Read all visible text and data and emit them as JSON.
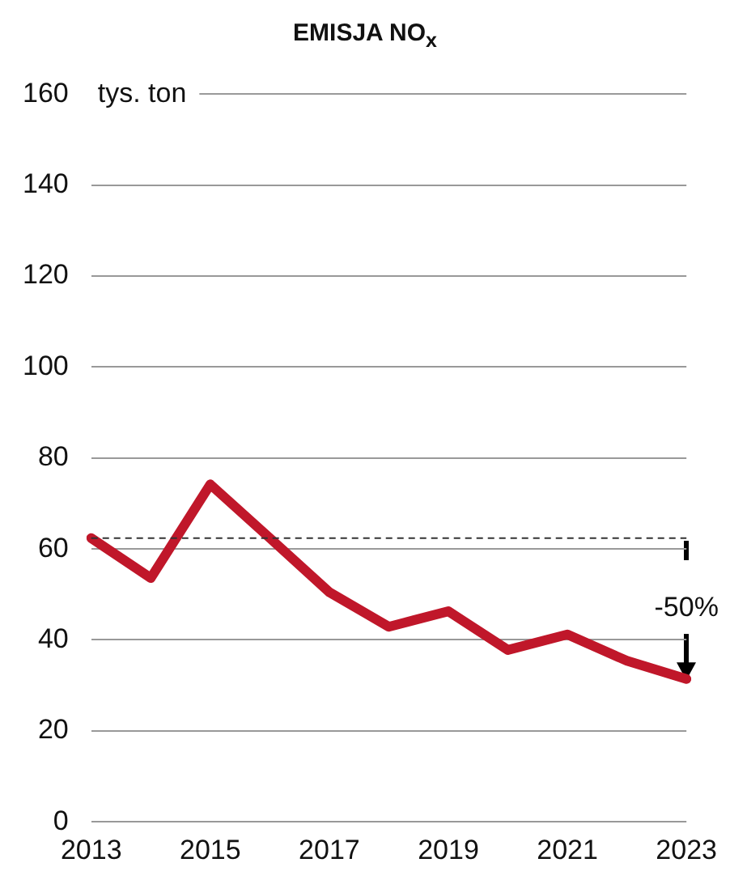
{
  "chart_data": {
    "type": "line",
    "title": "EMISJA NO$_{x}$",
    "ylabel": "tys. ton",
    "categories": [
      "2013",
      null,
      "2015",
      null,
      "2017",
      null,
      "2019",
      null,
      "2021",
      null,
      "2023"
    ],
    "series": [
      {
        "color": "#c0172a",
        "values": [
          62.4,
          53.6,
          74.2,
          62.4,
          50.5,
          42.9,
          46.3,
          37.8,
          41.2,
          35.4,
          31.4
        ]
      }
    ],
    "ylim": [
      0,
      160
    ],
    "yticks": [
      0,
      20,
      40,
      60,
      80,
      100,
      120,
      140,
      160
    ],
    "grid": "y",
    "legend": false,
    "marker": "none",
    "line_style": "solid",
    "ref_lines": [
      {
        "axis": "y",
        "value": 62.4,
        "color": "#333333",
        "line_style": "dashed"
      }
    ],
    "annotations": [
      "-50%"
    ]
  }
}
